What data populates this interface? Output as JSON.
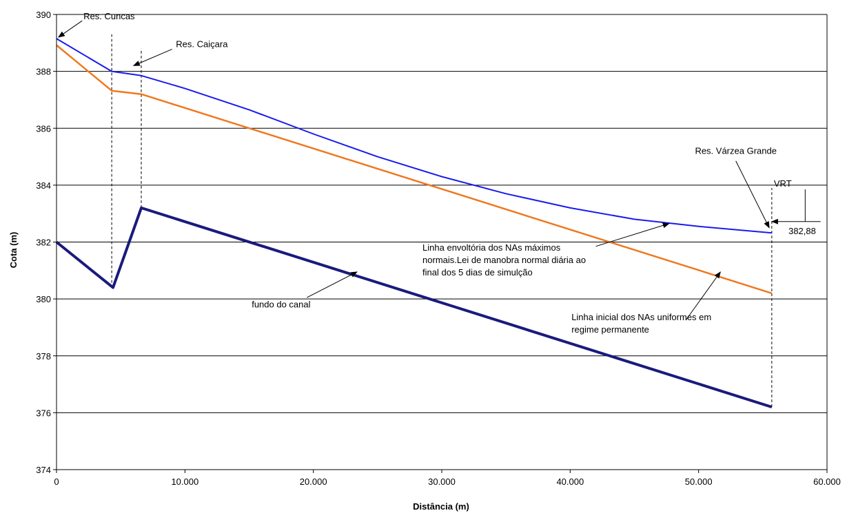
{
  "chart_data": {
    "type": "line",
    "title": "",
    "xlabel": "Distância (m)",
    "ylabel": "Cota (m)",
    "xlim": [
      0,
      60000
    ],
    "ylim": [
      374,
      390
    ],
    "x_ticks": [
      {
        "value": 0,
        "label": "0"
      },
      {
        "value": 10000,
        "label": "10.000"
      },
      {
        "value": 20000,
        "label": "20.000"
      },
      {
        "value": 30000,
        "label": "30.000"
      },
      {
        "value": 40000,
        "label": "40.000"
      },
      {
        "value": 50000,
        "label": "50.000"
      },
      {
        "value": 60000,
        "label": "60.000"
      }
    ],
    "y_ticks": [
      {
        "value": 374,
        "label": "374"
      },
      {
        "value": 376,
        "label": "376"
      },
      {
        "value": 378,
        "label": "378"
      },
      {
        "value": 380,
        "label": "380"
      },
      {
        "value": 382,
        "label": "382"
      },
      {
        "value": 384,
        "label": "384"
      },
      {
        "value": 386,
        "label": "386"
      },
      {
        "value": 388,
        "label": "388"
      },
      {
        "value": 390,
        "label": "390"
      }
    ],
    "grid": "horizontal",
    "legend": "none",
    "series": [
      {
        "color": "#1a1aee",
        "points": [
          [
            0,
            389.15
          ],
          [
            4300,
            388.0
          ],
          [
            6600,
            387.85
          ],
          [
            10000,
            387.4
          ],
          [
            15000,
            386.65
          ],
          [
            20000,
            385.8
          ],
          [
            25000,
            385.0
          ],
          [
            30000,
            384.3
          ],
          [
            35000,
            383.7
          ],
          [
            40000,
            383.2
          ],
          [
            45000,
            382.8
          ],
          [
            50000,
            382.55
          ],
          [
            55700,
            382.32
          ]
        ]
      },
      {
        "color": "#f07820",
        "points": [
          [
            0,
            388.92
          ],
          [
            4300,
            387.32
          ],
          [
            6600,
            387.2
          ],
          [
            55700,
            380.2
          ]
        ]
      },
      {
        "color": "#1a1a7c",
        "points": [
          [
            0,
            382.0
          ],
          [
            4400,
            380.4
          ],
          [
            6600,
            383.2
          ],
          [
            55700,
            376.2
          ]
        ]
      }
    ],
    "reference_lines": [
      {
        "x": 4300,
        "y_from": 380.4,
        "y_to": 389.3
      },
      {
        "x": 6600,
        "y_from": 383.2,
        "y_to": 388.8
      },
      {
        "x": 55700,
        "y_from": 376.2,
        "y_to": 383.9
      }
    ],
    "annotations": [
      {
        "lines": [
          "Res. Cuncas"
        ],
        "text_at": [
          2100,
          389.83
        ],
        "anchor": "start",
        "arrow_from": [
          2000,
          389.78
        ],
        "arrow_to": [
          150,
          389.2
        ]
      },
      {
        "lines": [
          "Res. Caiçara"
        ],
        "text_at": [
          9300,
          388.85
        ],
        "anchor": "start",
        "arrow_from": [
          9000,
          388.78
        ],
        "arrow_to": [
          6000,
          388.2
        ]
      },
      {
        "lines": [
          "Res. Várzea Grande"
        ],
        "text_at": [
          52900,
          385.1
        ],
        "anchor": "middle",
        "arrow_from": [
          52900,
          384.85
        ],
        "arrow_to": [
          55500,
          382.5
        ]
      },
      {
        "lines": [
          "Linha envoltória dos NAs máximos",
          "normais.Lei de manobra normal diária ao",
          "final dos 5 dias de simulção"
        ],
        "text_at": [
          28500,
          381.7
        ],
        "anchor": "start",
        "arrow_from": [
          42000,
          381.85
        ],
        "arrow_to": [
          47700,
          382.65
        ]
      },
      {
        "lines": [
          "fundo do canal"
        ],
        "text_at": [
          15200,
          379.7
        ],
        "anchor": "start",
        "arrow_from": [
          19500,
          380.05
        ],
        "arrow_to": [
          23400,
          380.95
        ]
      },
      {
        "lines": [
          "Linha inicial dos NAs uniformes em",
          "regime permanente"
        ],
        "text_at": [
          40100,
          379.25
        ],
        "anchor": "start",
        "arrow_from": [
          49000,
          379.25
        ],
        "arrow_to": [
          51700,
          380.95
        ]
      }
    ],
    "vrt": {
      "label": "VRT",
      "value_label": "382,88"
    }
  }
}
